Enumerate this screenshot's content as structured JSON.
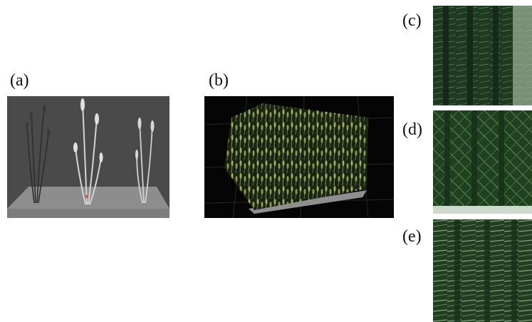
{
  "figure": {
    "labels": {
      "a": "(a)",
      "b": "(b)",
      "c": "(c)",
      "d": "(d)",
      "e": "(e)"
    },
    "colors": {
      "viewport_gray": "#4a4a4a",
      "ground_gray": "#8a8a8a",
      "render_black": "#050505",
      "canopy_green": "#1f3a22"
    }
  }
}
